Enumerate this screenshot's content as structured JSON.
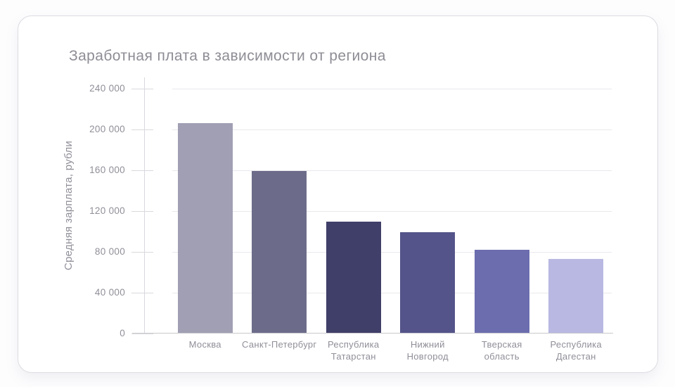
{
  "chart_data": {
    "type": "bar",
    "title": "Заработная плата в зависимости от региона",
    "xlabel": "",
    "ylabel": "Средняя зарплата, рубли",
    "categories": [
      "Москва",
      "Санкт-Петербург",
      "Республика Татарстан",
      "Нижний Новгород",
      "Тверская область",
      "Республика Дагестан"
    ],
    "values": [
      206000,
      159000,
      110000,
      99000,
      82000,
      73000
    ],
    "bar_colors": [
      "#a09fb3",
      "#6c6c8a",
      "#403f69",
      "#54548a",
      "#6b6dae",
      "#b8b8e2"
    ],
    "ylim": [
      0,
      240000
    ],
    "ytick_step": 40000,
    "ytick_labels": [
      "0",
      "40 000",
      "80 000",
      "120 000",
      "160 000",
      "200 000",
      "240 000"
    ],
    "grid": true,
    "legend": false
  },
  "colors": {
    "gridline": "#e9e9ee",
    "axis_line": "#d9d9de",
    "baseline": "#c9c9cf",
    "axis_text": "#8f8f99",
    "title_text": "#8d8d95",
    "card_border": "#dcdce2",
    "card_bg": "#ffffff"
  }
}
